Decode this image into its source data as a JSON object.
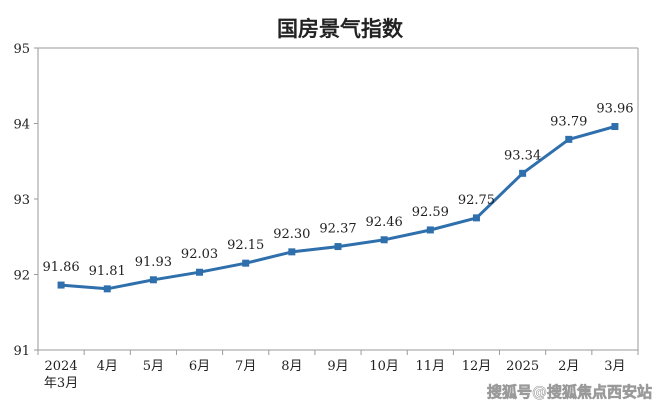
{
  "chart_data": {
    "type": "line",
    "title": "国房景气指数",
    "categories": [
      "2024\n年3月",
      "4月",
      "5月",
      "6月",
      "7月",
      "8月",
      "9月",
      "10月",
      "11月",
      "12月",
      "2025",
      "2月",
      "3月"
    ],
    "series": [
      {
        "values": [
          91.86,
          91.81,
          91.93,
          92.03,
          92.15,
          92.3,
          92.37,
          92.46,
          92.59,
          92.75,
          93.34,
          93.79,
          93.96
        ]
      }
    ],
    "data_labels": [
      "91.86",
      "91.81",
      "91.93",
      "92.03",
      "92.15",
      "92.30",
      "92.37",
      "92.46",
      "92.59",
      "92.75",
      "93.34",
      "93.79",
      "93.96"
    ],
    "ylim": [
      91,
      95
    ],
    "yticks": [
      "91",
      "92",
      "93",
      "94",
      "95"
    ],
    "xlabel": "",
    "ylabel": "",
    "grid": false,
    "legend": "none",
    "colors": {
      "line": "#2e6fac",
      "marker": "#2e6fac",
      "axis": "#9a9a9a"
    }
  },
  "watermark": "搜狐号@搜狐焦点西安站"
}
